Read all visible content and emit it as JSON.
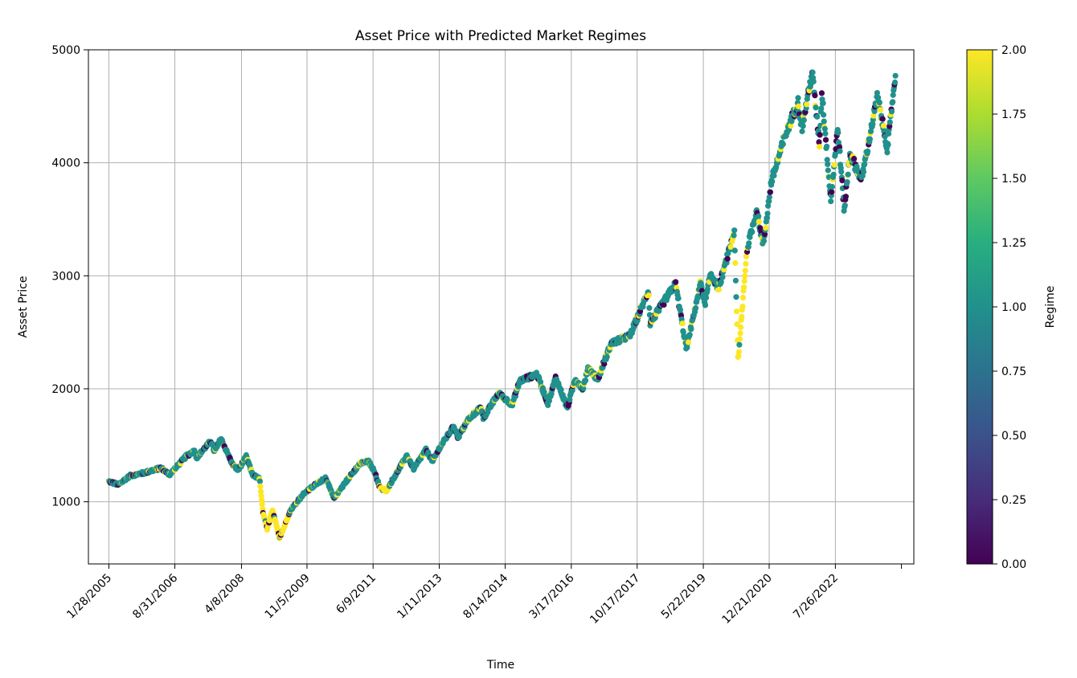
{
  "chart_data": {
    "type": "scatter",
    "title": "Asset Price with Predicted Market Regimes",
    "xlabel": "Time",
    "ylabel": "Asset Price",
    "x_axis": "date",
    "x_tick_labels": [
      "1/28/2005",
      "8/31/2006",
      "4/8/2008",
      "11/5/2009",
      "6/9/2011",
      "1/11/2013",
      "8/14/2014",
      "3/17/2016",
      "10/17/2017",
      "5/22/2019",
      "12/21/2020",
      "7/26/2022"
    ],
    "x_range": [
      "2004-08-01",
      "2024-06-15"
    ],
    "ylim": [
      450,
      5000
    ],
    "y_ticks": [
      1000,
      2000,
      3000,
      4000,
      5000
    ],
    "grid": true,
    "colormap": "viridis",
    "colorbar": {
      "label": "Regime",
      "range": [
        0,
        2
      ],
      "ticks": [
        "0.00",
        "0.25",
        "0.50",
        "0.75",
        "1.00",
        "1.25",
        "1.50",
        "1.75",
        "2.00"
      ]
    },
    "regime_colors": {
      "0": "#440154",
      "1": "#21918c",
      "2": "#fde725"
    },
    "price_path": [
      [
        "2005-01-28",
        1180
      ],
      [
        "2005-04-20",
        1150
      ],
      [
        "2005-08-01",
        1230
      ],
      [
        "2005-12-01",
        1255
      ],
      [
        "2006-05-01",
        1300
      ],
      [
        "2006-07-15",
        1240
      ],
      [
        "2006-12-15",
        1410
      ],
      [
        "2007-02-20",
        1450
      ],
      [
        "2007-03-10",
        1390
      ],
      [
        "2007-07-15",
        1540
      ],
      [
        "2007-08-15",
        1440
      ],
      [
        "2007-10-10",
        1560
      ],
      [
        "2008-01-20",
        1330
      ],
      [
        "2008-03-10",
        1280
      ],
      [
        "2008-05-20",
        1400
      ],
      [
        "2008-07-15",
        1240
      ],
      [
        "2008-09-15",
        1200
      ],
      [
        "2008-10-15",
        900
      ],
      [
        "2008-11-20",
        760
      ],
      [
        "2009-01-05",
        930
      ],
      [
        "2009-03-09",
        680
      ],
      [
        "2009-06-15",
        930
      ],
      [
        "2009-10-15",
        1080
      ],
      [
        "2010-01-15",
        1150
      ],
      [
        "2010-04-20",
        1210
      ],
      [
        "2010-07-01",
        1030
      ],
      [
        "2010-10-15",
        1180
      ],
      [
        "2011-02-15",
        1340
      ],
      [
        "2011-04-30",
        1360
      ],
      [
        "2011-06-20",
        1270
      ],
      [
        "2011-08-10",
        1120
      ],
      [
        "2011-10-05",
        1100
      ],
      [
        "2012-04-01",
        1410
      ],
      [
        "2012-06-01",
        1290
      ],
      [
        "2012-09-15",
        1460
      ],
      [
        "2012-11-15",
        1360
      ],
      [
        "2013-01-15",
        1480
      ],
      [
        "2013-05-20",
        1670
      ],
      [
        "2013-06-25",
        1570
      ],
      [
        "2013-09-18",
        1720
      ],
      [
        "2014-01-15",
        1840
      ],
      [
        "2014-02-03",
        1740
      ],
      [
        "2014-06-15",
        1960
      ],
      [
        "2014-10-15",
        1860
      ],
      [
        "2014-12-20",
        2070
      ],
      [
        "2015-05-20",
        2130
      ],
      [
        "2015-08-25",
        1870
      ],
      [
        "2015-11-01",
        2100
      ],
      [
        "2016-02-11",
        1830
      ],
      [
        "2016-04-20",
        2090
      ],
      [
        "2016-06-27",
        2000
      ],
      [
        "2016-08-15",
        2190
      ],
      [
        "2016-11-04",
        2080
      ],
      [
        "2017-03-01",
        2400
      ],
      [
        "2017-08-15",
        2470
      ],
      [
        "2018-01-26",
        2870
      ],
      [
        "2018-02-08",
        2580
      ],
      [
        "2018-09-20",
        2930
      ],
      [
        "2018-12-24",
        2350
      ],
      [
        "2019-04-30",
        2950
      ],
      [
        "2019-06-03",
        2740
      ],
      [
        "2019-07-26",
        3020
      ],
      [
        "2019-10-03",
        2890
      ],
      [
        "2020-02-19",
        3390
      ],
      [
        "2020-03-23",
        2240
      ],
      [
        "2020-06-08",
        3230
      ],
      [
        "2020-09-02",
        3580
      ],
      [
        "2020-10-30",
        3270
      ],
      [
        "2021-01-08",
        3830
      ],
      [
        "2021-05-07",
        4230
      ],
      [
        "2021-09-02",
        4540
      ],
      [
        "2021-10-04",
        4300
      ],
      [
        "2022-01-03",
        4800
      ],
      [
        "2022-03-08",
        4170
      ],
      [
        "2022-03-29",
        4630
      ],
      [
        "2022-06-16",
        3670
      ],
      [
        "2022-08-16",
        4310
      ],
      [
        "2022-10-12",
        3580
      ],
      [
        "2022-12-01",
        4080
      ],
      [
        "2023-03-13",
        3850
      ],
      [
        "2023-07-31",
        4590
      ],
      [
        "2023-10-27",
        4120
      ],
      [
        "2024-01-05",
        4790
      ]
    ],
    "regime_spans": [
      [
        "2008-09-10",
        "2009-05-31",
        2
      ],
      [
        "2011-08-01",
        "2011-10-31",
        2
      ],
      [
        "2020-02-24",
        "2020-06-15",
        2
      ]
    ]
  }
}
